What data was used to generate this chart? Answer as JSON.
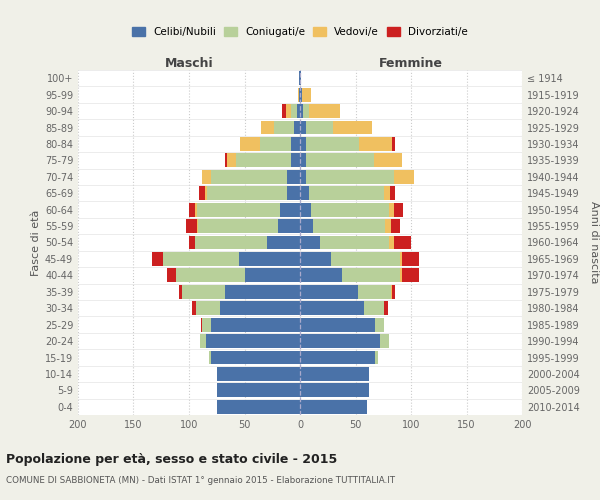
{
  "age_groups": [
    "100+",
    "95-99",
    "90-94",
    "85-89",
    "80-84",
    "75-79",
    "70-74",
    "65-69",
    "60-64",
    "55-59",
    "50-54",
    "45-49",
    "40-44",
    "35-39",
    "30-34",
    "25-29",
    "20-24",
    "15-19",
    "10-14",
    "5-9",
    "0-4"
  ],
  "birth_years": [
    "≤ 1914",
    "1915-1919",
    "1920-1924",
    "1925-1929",
    "1930-1934",
    "1935-1939",
    "1940-1944",
    "1945-1949",
    "1950-1954",
    "1955-1959",
    "1960-1964",
    "1965-1969",
    "1970-1974",
    "1975-1979",
    "1980-1984",
    "1985-1989",
    "1990-1994",
    "1995-1999",
    "2000-2004",
    "2005-2009",
    "2010-2014"
  ],
  "colors": {
    "celibi": "#4a72a8",
    "coniugati": "#b8d09a",
    "vedovi": "#f0c060",
    "divorziati": "#cc2020"
  },
  "maschi": {
    "celibi": [
      1,
      1,
      3,
      5,
      8,
      8,
      12,
      12,
      18,
      20,
      30,
      55,
      50,
      68,
      72,
      80,
      85,
      80,
      75,
      75,
      75
    ],
    "coniugati": [
      0,
      0,
      5,
      18,
      28,
      50,
      68,
      72,
      75,
      72,
      65,
      68,
      62,
      38,
      22,
      8,
      5,
      2,
      0,
      0,
      0
    ],
    "vedovi": [
      0,
      1,
      5,
      12,
      18,
      8,
      8,
      2,
      2,
      1,
      0,
      0,
      0,
      0,
      0,
      0,
      0,
      0,
      0,
      0,
      0
    ],
    "divorziati": [
      0,
      0,
      3,
      0,
      0,
      2,
      0,
      5,
      5,
      10,
      5,
      10,
      8,
      3,
      3,
      1,
      0,
      0,
      0,
      0,
      0
    ]
  },
  "femmine": {
    "celibi": [
      1,
      2,
      3,
      5,
      5,
      5,
      5,
      8,
      10,
      12,
      18,
      28,
      38,
      52,
      58,
      68,
      72,
      68,
      62,
      62,
      60
    ],
    "coniugati": [
      0,
      0,
      5,
      25,
      48,
      62,
      80,
      68,
      70,
      65,
      62,
      62,
      52,
      30,
      18,
      8,
      8,
      2,
      0,
      0,
      0
    ],
    "vedovi": [
      0,
      8,
      28,
      35,
      30,
      25,
      18,
      5,
      5,
      5,
      5,
      2,
      2,
      1,
      0,
      0,
      0,
      0,
      0,
      0,
      0
    ],
    "divorziati": [
      0,
      0,
      0,
      0,
      3,
      0,
      0,
      5,
      8,
      8,
      15,
      15,
      15,
      3,
      3,
      0,
      0,
      0,
      0,
      0,
      0
    ]
  },
  "xlim": 200,
  "xlabel_maschi": "Maschi",
  "xlabel_femmine": "Femmine",
  "title": "Popolazione per età, sesso e stato civile - 2015",
  "subtitle": "COMUNE DI SABBIONETA (MN) - Dati ISTAT 1° gennaio 2015 - Elaborazione TUTTITALIA.IT",
  "ylabel": "Fasce di età",
  "ylabel_right": "Anni di nascita",
  "legend_labels": [
    "Celibi/Nubili",
    "Coniugati/e",
    "Vedovi/e",
    "Divorziati/e"
  ],
  "xticks": [
    -200,
    -150,
    -100,
    -50,
    0,
    50,
    100,
    150,
    200
  ],
  "xtick_labels": [
    "200",
    "150",
    "100",
    "50",
    "0",
    "50",
    "100",
    "150",
    "200"
  ],
  "bg_color": "#f0f0e8",
  "plot_bg": "#ffffff"
}
